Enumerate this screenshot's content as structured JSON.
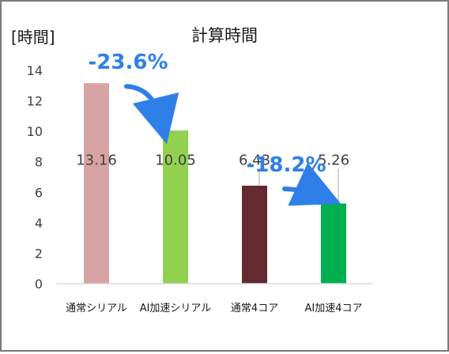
{
  "colors": {
    "accent_blue": "#2f7fe8",
    "axis": "#d9d9d9",
    "frame": "#7a7a7a"
  },
  "annotations": [
    {
      "label": "-23.6%",
      "from_category": 0,
      "to_category": 1
    },
    {
      "label": "-18.2%",
      "from_category": 2,
      "to_category": 3
    }
  ],
  "chart_data": {
    "type": "bar",
    "title": "計算時間",
    "ylabel": "[時間]",
    "xlabel": "",
    "categories": [
      "通常シリアル",
      "AI加速シリアル",
      "通常4コア",
      "AI加速4コア"
    ],
    "values": [
      13.16,
      10.05,
      6.43,
      5.26
    ],
    "data_labels": [
      "13.16",
      "10.05",
      "6.43",
      "5.26"
    ],
    "bar_colors": [
      "#d8a3a5",
      "#92d050",
      "#632a30",
      "#00b050"
    ],
    "ylim": [
      0,
      14
    ],
    "yticks": [
      0,
      2,
      4,
      6,
      8,
      10,
      12,
      14
    ],
    "grid": false,
    "legend": "none"
  }
}
